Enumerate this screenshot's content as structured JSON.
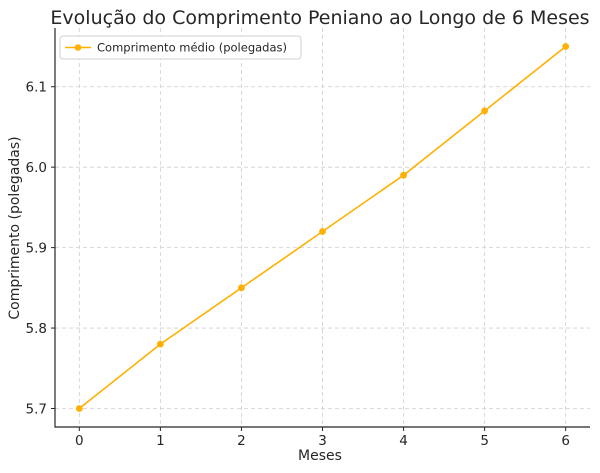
{
  "chart_data": {
    "type": "line",
    "title": "Evolução do Comprimento Peniano ao Longo de 6 Meses",
    "xlabel": "Meses",
    "ylabel": "Comprimento (polegadas)",
    "x": [
      0,
      1,
      2,
      3,
      4,
      5,
      6
    ],
    "xlim": [
      -0.3,
      6.3
    ],
    "ylim": [
      5.677,
      6.173
    ],
    "x_ticks": [
      "0",
      "1",
      "2",
      "3",
      "4",
      "5",
      "6"
    ],
    "y_ticks": [
      "5.7",
      "5.8",
      "5.9",
      "6.0",
      "6.1"
    ],
    "grid": true,
    "legend_position": "top-left",
    "series": [
      {
        "name": "Comprimento médio (polegadas)",
        "color": "#ffb000",
        "marker": "circle",
        "values": [
          5.7,
          5.78,
          5.85,
          5.92,
          5.99,
          6.07,
          6.15
        ]
      }
    ]
  }
}
